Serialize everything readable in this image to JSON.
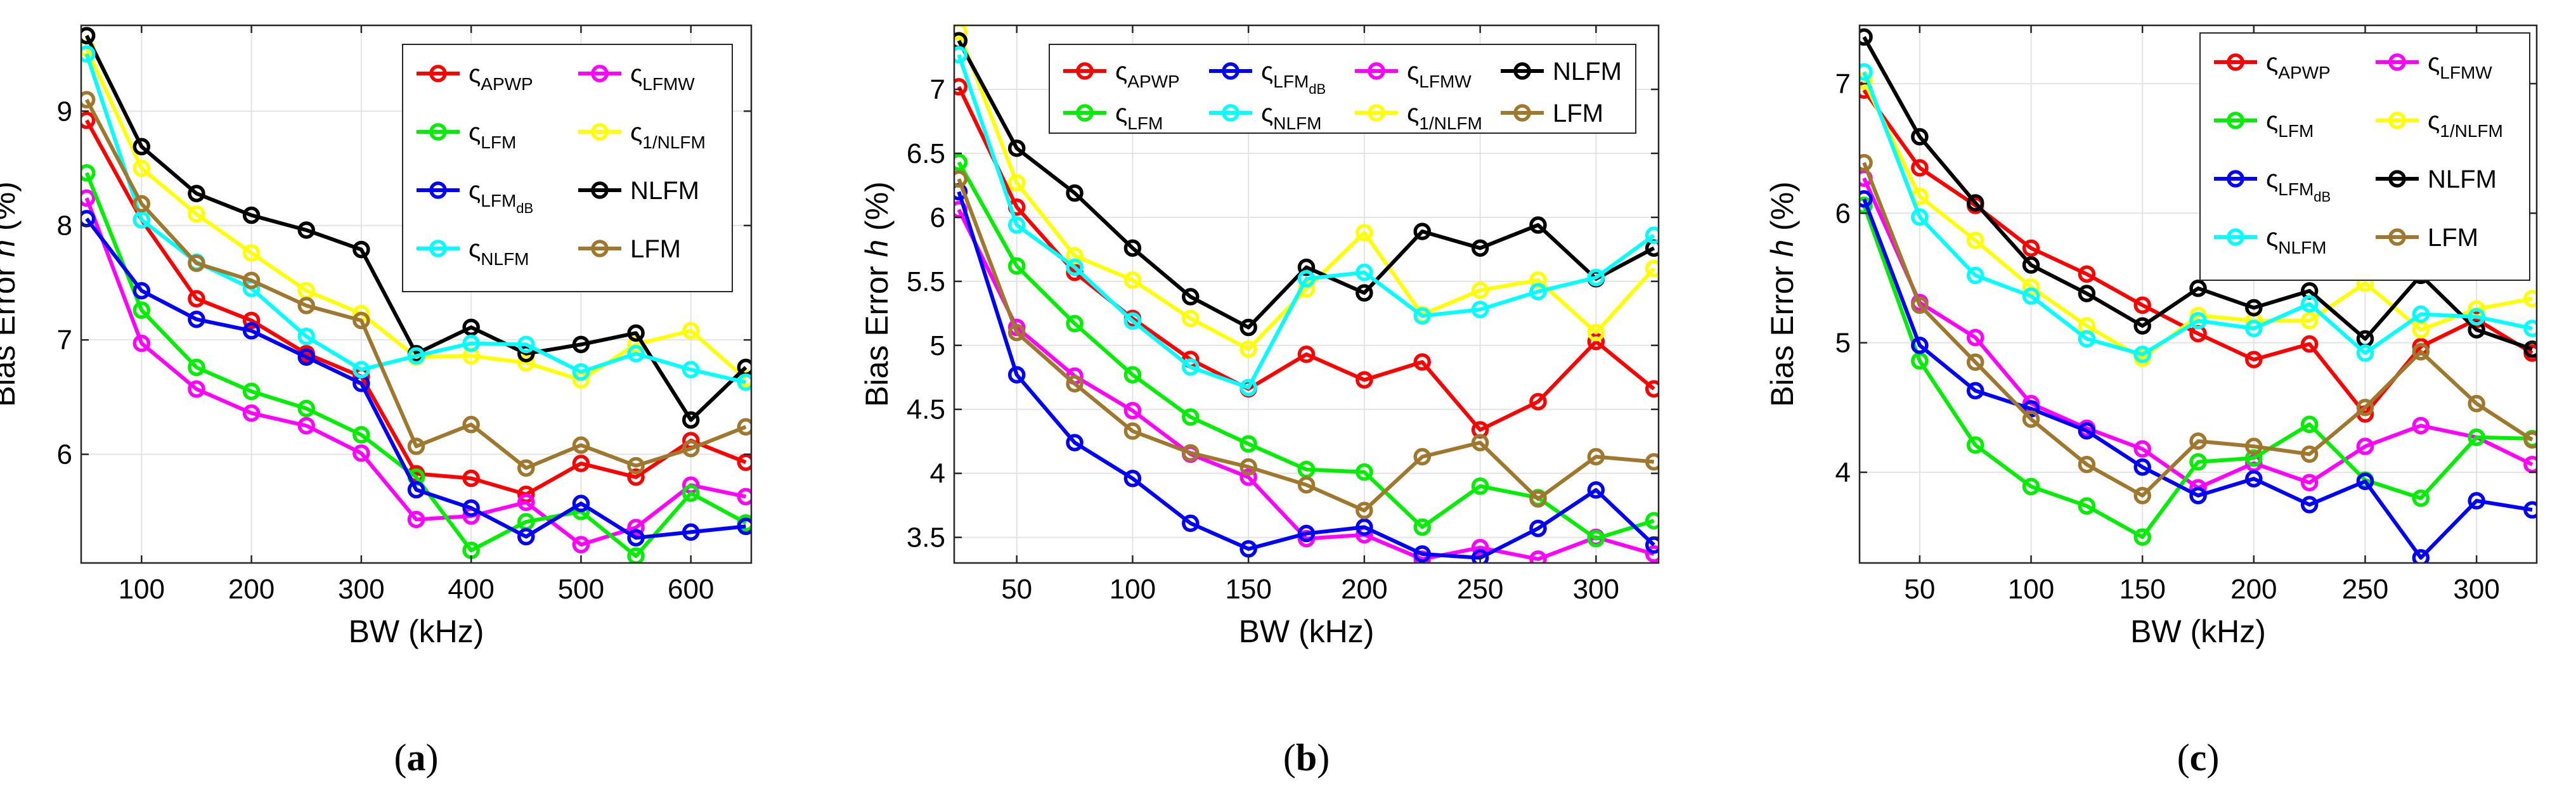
{
  "colors": {
    "APWP": "#ff0000",
    "LFMW": "#ff00ff",
    "LFM_s": "#00ee00",
    "ONE_NLFM": "#ffff00",
    "LFMdB": "#0000ff",
    "NLFM": "#000000",
    "NLFM_s": "#00ffff",
    "LFM": "#a0782d"
  },
  "legend_text": {
    "sigma": "ς",
    "APWP": "APWP",
    "LFMW": "LFMW",
    "LFM_s": "LFM",
    "LFMdB_main": "LFM",
    "LFMdB_sub": "dB",
    "NLFM_s": "NLFM",
    "ONE_NLFM": "1/NLFM",
    "NLFM": "NLFM",
    "LFM": "LFM"
  },
  "chart_data": [
    {
      "type": "line",
      "panel": "(a)",
      "panel_letter": "a",
      "xlabel": "BW (kHz)",
      "ylabel": "Bias Error",
      "ylabel_var": "h",
      "ylabel_unit": "(%)",
      "xlim": [
        45,
        655
      ],
      "ylim": [
        5.05,
        9.75
      ],
      "xticks": [
        100,
        200,
        300,
        400,
        500,
        600
      ],
      "yticks": [
        6,
        7,
        8,
        9
      ],
      "ytick_labels": [
        "6",
        "7",
        "8",
        "9"
      ],
      "x": [
        50,
        100,
        150,
        200,
        250,
        300,
        350,
        400,
        450,
        500,
        550,
        600,
        650
      ],
      "legend_order": [
        "APWP",
        "LFMW",
        "LFM_s",
        "ONE_NLFM",
        "LFMdB",
        "NLFM",
        "NLFM_s",
        "LFM"
      ],
      "series": [
        {
          "key": "APWP",
          "name": "ςAPWP",
          "values": [
            8.92,
            8.05,
            7.36,
            7.17,
            6.88,
            6.68,
            5.83,
            5.79,
            5.65,
            5.92,
            5.8,
            6.12,
            5.93
          ]
        },
        {
          "key": "LFMW",
          "name": "ςLFMW",
          "values": [
            8.24,
            6.97,
            6.57,
            6.36,
            6.25,
            6.01,
            5.43,
            5.46,
            5.58,
            5.21,
            5.36,
            5.73,
            5.63
          ]
        },
        {
          "key": "LFM_s",
          "name": "ςLFM",
          "values": [
            8.46,
            7.26,
            6.76,
            6.55,
            6.4,
            6.17,
            5.8,
            5.16,
            5.41,
            5.5,
            5.11,
            5.66,
            5.4
          ]
        },
        {
          "key": "ONE_NLFM",
          "name": "ς1/NLFM",
          "values": [
            9.55,
            8.5,
            8.1,
            7.76,
            7.43,
            7.23,
            6.85,
            6.86,
            6.8,
            6.65,
            6.96,
            7.08,
            6.66
          ]
        },
        {
          "key": "LFMdB",
          "name": "ςLFMdB",
          "values": [
            8.06,
            7.43,
            7.18,
            7.08,
            6.85,
            6.62,
            5.69,
            5.53,
            5.28,
            5.57,
            5.27,
            5.32,
            5.37
          ]
        },
        {
          "key": "NLFM",
          "name": "NLFM",
          "values": [
            9.66,
            8.69,
            8.28,
            8.09,
            7.96,
            7.79,
            6.88,
            7.11,
            6.88,
            6.96,
            7.06,
            6.3,
            6.76
          ]
        },
        {
          "key": "NLFM_s",
          "name": "ςNLFM",
          "values": [
            9.5,
            8.05,
            7.68,
            7.45,
            7.03,
            6.74,
            6.86,
            6.97,
            6.96,
            6.72,
            6.88,
            6.74,
            6.63
          ]
        },
        {
          "key": "LFM",
          "name": "LFM",
          "values": [
            9.1,
            8.19,
            7.67,
            7.52,
            7.3,
            7.17,
            6.07,
            6.26,
            5.88,
            6.08,
            5.9,
            6.05,
            6.24
          ]
        }
      ]
    },
    {
      "type": "line",
      "panel": "(b)",
      "panel_letter": "b",
      "xlabel": "BW (kHz)",
      "ylabel": "Bias Error",
      "ylabel_var": "h",
      "ylabel_unit": "(%)",
      "xlim": [
        23,
        327
      ],
      "ylim": [
        3.3,
        7.5
      ],
      "xticks": [
        50,
        100,
        150,
        200,
        250,
        300
      ],
      "yticks": [
        3.5,
        4,
        4.5,
        5,
        5.5,
        6,
        6.5,
        7
      ],
      "ytick_labels": [
        "3.5",
        "4",
        "4.5",
        "5",
        "5.5",
        "6",
        "6.5",
        "7"
      ],
      "x": [
        25,
        50,
        75,
        100,
        125,
        150,
        175,
        200,
        225,
        250,
        275,
        300,
        325
      ],
      "legend_order": [
        "APWP",
        "LFMdB",
        "LFMW",
        "NLFM",
        "LFM_s",
        "NLFM_s",
        "ONE_NLFM",
        "LFM"
      ],
      "series": [
        {
          "key": "APWP",
          "name": "ςAPWP",
          "values": [
            7.02,
            6.08,
            5.57,
            5.21,
            4.89,
            4.66,
            4.93,
            4.73,
            4.87,
            4.34,
            4.56,
            5.03,
            4.66
          ]
        },
        {
          "key": "LFMW",
          "name": "ςLFMW",
          "values": [
            6.06,
            5.14,
            4.76,
            4.49,
            4.15,
            3.97,
            3.49,
            3.52,
            3.33,
            3.42,
            3.33,
            3.5,
            3.37
          ]
        },
        {
          "key": "LFM_s",
          "name": "ςLFM",
          "values": [
            6.43,
            5.62,
            5.17,
            4.77,
            4.44,
            4.23,
            4.03,
            4.01,
            3.58,
            3.9,
            3.81,
            3.49,
            3.63
          ]
        },
        {
          "key": "ONE_NLFM",
          "name": "ς1/NLFM",
          "values": [
            7.45,
            6.27,
            5.7,
            5.51,
            5.21,
            4.97,
            5.44,
            5.88,
            5.24,
            5.43,
            5.51,
            5.1,
            5.6
          ]
        },
        {
          "key": "LFMdB",
          "name": "ςLFMdB",
          "values": [
            6.2,
            4.77,
            4.24,
            3.96,
            3.61,
            3.41,
            3.53,
            3.58,
            3.37,
            3.34,
            3.57,
            3.87,
            3.44
          ]
        },
        {
          "key": "NLFM",
          "name": "NLFM",
          "values": [
            7.38,
            6.54,
            6.19,
            5.76,
            5.38,
            5.14,
            5.61,
            5.41,
            5.89,
            5.76,
            5.94,
            5.52,
            5.76
          ]
        },
        {
          "key": "NLFM_s",
          "name": "ςNLFM",
          "values": [
            7.27,
            5.94,
            5.61,
            5.19,
            4.83,
            4.67,
            5.52,
            5.57,
            5.23,
            5.28,
            5.42,
            5.53,
            5.86
          ]
        },
        {
          "key": "LFM",
          "name": "LFM",
          "values": [
            6.3,
            5.1,
            4.7,
            4.33,
            4.16,
            4.05,
            3.91,
            3.71,
            4.13,
            4.24,
            3.8,
            4.13,
            4.09
          ]
        }
      ]
    },
    {
      "type": "line",
      "panel": "(c)",
      "panel_letter": "c",
      "xlabel": "BW (kHz)",
      "ylabel": "Bias Error",
      "ylabel_var": "h",
      "ylabel_unit": "(%)",
      "xlim": [
        23,
        327
      ],
      "ylim": [
        3.3,
        7.45
      ],
      "xticks": [
        50,
        100,
        150,
        200,
        250,
        300
      ],
      "yticks": [
        4,
        5,
        6,
        7
      ],
      "ytick_labels": [
        "4",
        "5",
        "6",
        "7"
      ],
      "x": [
        25,
        50,
        75,
        100,
        125,
        150,
        175,
        200,
        225,
        250,
        275,
        300,
        325
      ],
      "legend_order": [
        "APWP",
        "LFMW",
        "LFM_s",
        "ONE_NLFM",
        "LFMdB",
        "NLFM",
        "NLFM_s",
        "LFM"
      ],
      "series": [
        {
          "key": "APWP",
          "name": "ςAPWP",
          "values": [
            6.95,
            6.35,
            6.06,
            5.73,
            5.53,
            5.29,
            5.07,
            4.87,
            4.99,
            4.45,
            4.97,
            5.18,
            4.92
          ]
        },
        {
          "key": "LFMW",
          "name": "ςLFMW",
          "values": [
            6.27,
            5.31,
            5.04,
            4.53,
            4.34,
            4.18,
            3.88,
            4.07,
            3.92,
            4.2,
            4.36,
            4.27,
            4.06
          ]
        },
        {
          "key": "LFM_s",
          "name": "ςLFM",
          "values": [
            6.06,
            4.86,
            4.21,
            3.89,
            3.74,
            3.5,
            4.08,
            4.11,
            4.37,
            3.94,
            3.8,
            4.27,
            4.26
          ]
        },
        {
          "key": "ONE_NLFM",
          "name": "ς1/NLFM",
          "values": [
            7.02,
            6.13,
            5.79,
            5.43,
            5.13,
            4.88,
            5.21,
            5.17,
            5.17,
            5.46,
            5.1,
            5.26,
            5.34
          ]
        },
        {
          "key": "LFMdB",
          "name": "ςLFMdB",
          "values": [
            6.11,
            4.98,
            4.63,
            4.49,
            4.32,
            4.04,
            3.82,
            3.95,
            3.75,
            3.93,
            3.34,
            3.78,
            3.71
          ]
        },
        {
          "key": "NLFM",
          "name": "NLFM",
          "values": [
            7.36,
            6.59,
            6.08,
            5.6,
            5.38,
            5.13,
            5.42,
            5.27,
            5.4,
            5.03,
            5.52,
            5.1,
            4.95
          ]
        },
        {
          "key": "NLFM_s",
          "name": "ςNLFM",
          "values": [
            7.09,
            5.97,
            5.52,
            5.36,
            5.03,
            4.91,
            5.17,
            5.11,
            5.3,
            4.92,
            5.22,
            5.2,
            5.11
          ]
        },
        {
          "key": "LFM",
          "name": "LFM",
          "values": [
            6.39,
            5.29,
            4.85,
            4.41,
            4.06,
            3.82,
            4.24,
            4.2,
            4.14,
            4.5,
            4.93,
            4.53,
            4.25
          ]
        }
      ]
    }
  ]
}
